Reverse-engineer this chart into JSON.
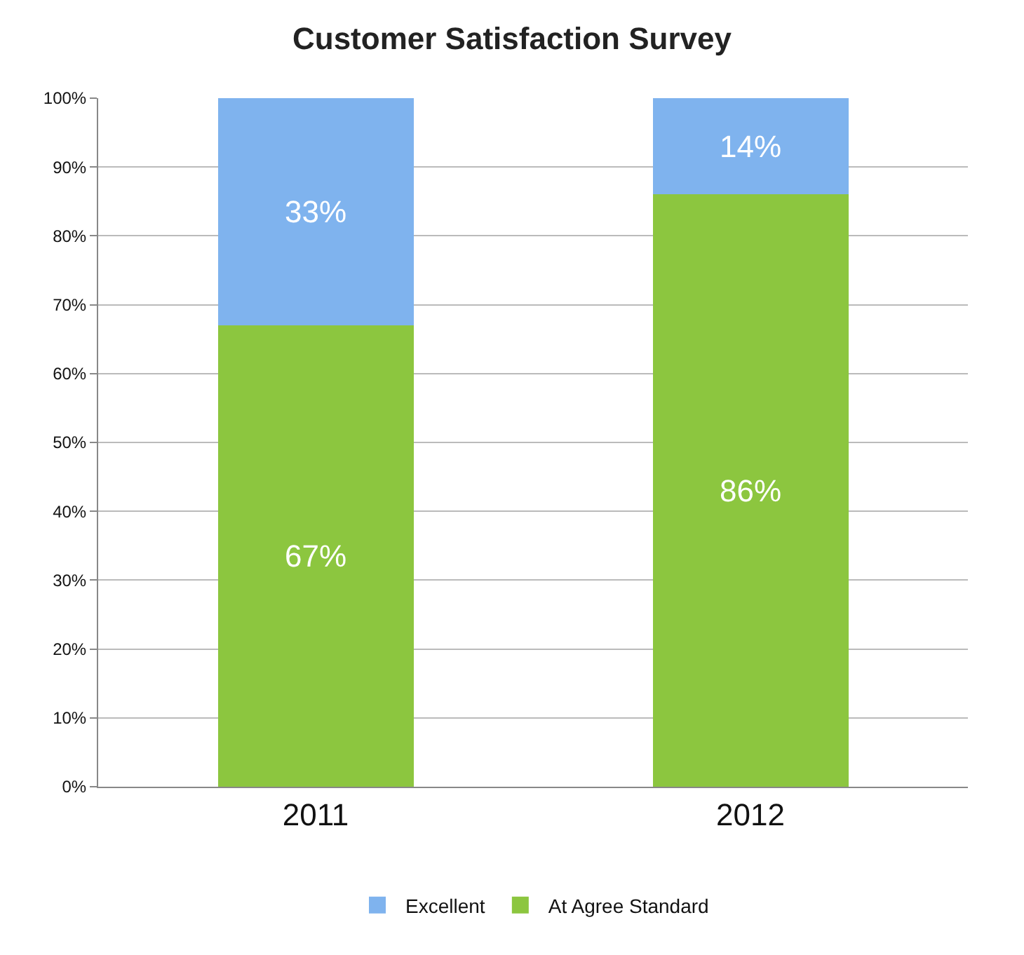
{
  "chart_data": {
    "type": "bar",
    "title": "Customer Satisfaction Survey",
    "stacked": true,
    "categories": [
      "2011",
      "2012"
    ],
    "series": [
      {
        "name": "At Agree Standard",
        "color": "#8cc63f",
        "values": [
          67,
          86
        ],
        "value_labels": [
          "67%",
          "86%"
        ]
      },
      {
        "name": "Excellent",
        "color": "#7fb3ee",
        "values": [
          33,
          14
        ],
        "value_labels": [
          "33%",
          "14%"
        ]
      }
    ],
    "ylim": [
      0,
      100
    ],
    "yticks": [
      {
        "value": 0,
        "label": "0%"
      },
      {
        "value": 10,
        "label": "10%"
      },
      {
        "value": 20,
        "label": "20%"
      },
      {
        "value": 30,
        "label": "30%"
      },
      {
        "value": 40,
        "label": "40%"
      },
      {
        "value": 50,
        "label": "50%"
      },
      {
        "value": 60,
        "label": "60%"
      },
      {
        "value": 70,
        "label": "70%"
      },
      {
        "value": 80,
        "label": "80%"
      },
      {
        "value": 90,
        "label": "90%"
      },
      {
        "value": 100,
        "label": "100%"
      }
    ],
    "grid": "y",
    "legend": "bottom"
  }
}
